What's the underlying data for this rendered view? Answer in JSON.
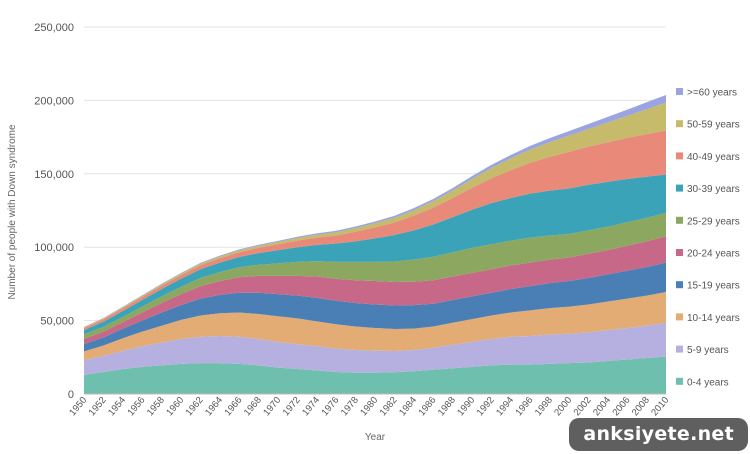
{
  "chart_data": {
    "type": "area",
    "stacked": true,
    "xlabel": "Year",
    "ylabel": "Number of people with Down syndrome",
    "ylim": [
      0,
      250000
    ],
    "yticks": [
      "0",
      "50,000",
      "100,000",
      "150,000",
      "200,000",
      "250,000"
    ],
    "grid": true,
    "legend_position": "right",
    "x": [
      1950,
      1952,
      1954,
      1956,
      1958,
      1960,
      1962,
      1964,
      1966,
      1968,
      1970,
      1972,
      1974,
      1976,
      1978,
      1980,
      1982,
      1984,
      1986,
      1988,
      1990,
      1992,
      1994,
      1996,
      1998,
      2000,
      2002,
      2004,
      2006,
      2008,
      2010
    ],
    "series": [
      {
        "name": "0-4 years",
        "color": "#6fbfae",
        "values": [
          13000,
          15000,
          17000,
          18500,
          19500,
          20500,
          21000,
          21000,
          20500,
          19500,
          18000,
          17000,
          16000,
          15000,
          14500,
          14500,
          14800,
          15500,
          16500,
          17500,
          18500,
          19500,
          20000,
          20000,
          20500,
          21000,
          21500,
          22500,
          23500,
          24500,
          25500
        ]
      },
      {
        "name": "5-9 years",
        "color": "#b6b0e0",
        "values": [
          10000,
          11000,
          12500,
          14000,
          15500,
          17000,
          18000,
          18500,
          18500,
          18000,
          17500,
          17000,
          16500,
          16000,
          15500,
          15000,
          14500,
          14500,
          15000,
          16000,
          17000,
          18000,
          19000,
          19500,
          20000,
          20000,
          20500,
          21000,
          21500,
          22000,
          23000
        ]
      },
      {
        "name": "10-14 years",
        "color": "#e3ac74",
        "values": [
          6000,
          7000,
          8500,
          10000,
          11500,
          13000,
          14500,
          15500,
          16500,
          17000,
          17500,
          17500,
          17000,
          16500,
          16000,
          15500,
          15000,
          14500,
          14500,
          15000,
          15500,
          16000,
          16500,
          17500,
          18000,
          18500,
          19000,
          19500,
          20000,
          20500,
          21000
        ]
      },
      {
        "name": "15-19 years",
        "color": "#4a7fb5",
        "values": [
          5000,
          5500,
          6500,
          7500,
          9000,
          10000,
          11500,
          12500,
          13500,
          14500,
          15000,
          15500,
          16000,
          16000,
          16000,
          16000,
          16000,
          16000,
          15500,
          15500,
          15500,
          15500,
          16000,
          16500,
          17000,
          17500,
          18000,
          18500,
          19000,
          19500,
          20000
        ]
      },
      {
        "name": "20-24 years",
        "color": "#c76888",
        "values": [
          3500,
          4000,
          4500,
          5500,
          6500,
          7500,
          8500,
          9500,
          10500,
          11500,
          12500,
          13500,
          14500,
          15000,
          15500,
          16000,
          16000,
          16000,
          16000,
          16000,
          16000,
          16000,
          16000,
          16000,
          16000,
          16000,
          16500,
          16500,
          17000,
          17500,
          18000
        ]
      },
      {
        "name": "25-29 years",
        "color": "#8ca860",
        "values": [
          3000,
          3200,
          3500,
          4000,
          4500,
          5000,
          5500,
          6000,
          6800,
          7500,
          8500,
          9500,
          10500,
          11500,
          12500,
          13000,
          14000,
          15000,
          16000,
          16500,
          17000,
          17000,
          17000,
          17000,
          16500,
          16000,
          16000,
          16000,
          16000,
          16000,
          16000
        ]
      },
      {
        "name": "30-39 years",
        "color": "#3aa3b8",
        "values": [
          3000,
          3500,
          4000,
          4500,
          5000,
          5500,
          6000,
          6500,
          7000,
          8000,
          9000,
          10000,
          11000,
          12500,
          14000,
          16000,
          18000,
          20000,
          22000,
          24000,
          26000,
          28000,
          29000,
          30000,
          30500,
          31000,
          31000,
          30500,
          29500,
          28000,
          26000
        ]
      },
      {
        "name": "40-49 years",
        "color": "#e8897a",
        "values": [
          1500,
          1700,
          1900,
          2100,
          2300,
          2500,
          2700,
          3000,
          3300,
          3600,
          4000,
          4500,
          5000,
          5500,
          6500,
          7500,
          8500,
          10000,
          11500,
          13000,
          15000,
          17000,
          19000,
          21000,
          23000,
          25000,
          26000,
          27000,
          28000,
          29000,
          30000
        ]
      },
      {
        "name": "50-59 years",
        "color": "#c5bb6a",
        "values": [
          500,
          600,
          700,
          800,
          900,
          1000,
          1100,
          1200,
          1300,
          1400,
          1600,
          1800,
          2000,
          2200,
          2500,
          2800,
          3200,
          3700,
          4300,
          5000,
          6000,
          7000,
          8000,
          9000,
          10000,
          11000,
          12000,
          13500,
          15000,
          17000,
          19000
        ]
      },
      {
        "name": ">=60 years",
        "color": "#9aa4e0",
        "values": [
          200,
          250,
          300,
          350,
          400,
          450,
          500,
          550,
          600,
          650,
          700,
          800,
          900,
          1000,
          1100,
          1200,
          1300,
          1400,
          1500,
          1700,
          1900,
          2100,
          2300,
          2500,
          2800,
          3100,
          3400,
          3800,
          4200,
          4700,
          5200
        ]
      }
    ]
  },
  "watermark": "anksiyete.net"
}
